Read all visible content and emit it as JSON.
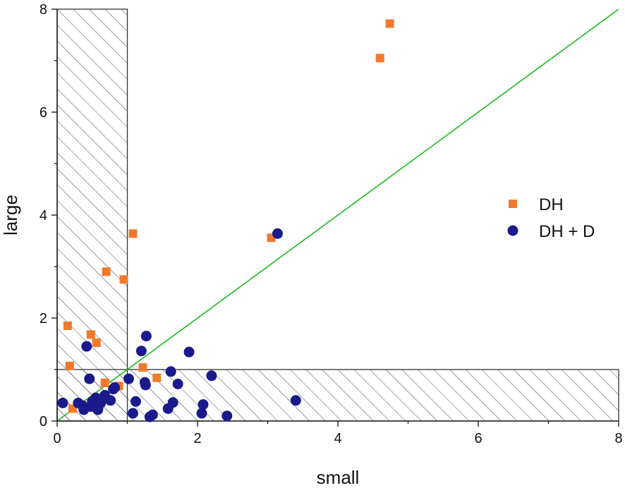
{
  "chart_data": {
    "type": "scatter",
    "title": "",
    "xlabel": "small",
    "ylabel": "large",
    "xlim": [
      0,
      8
    ],
    "ylim": [
      0,
      8
    ],
    "x_ticks": [
      "0",
      "2",
      "4",
      "6",
      "8"
    ],
    "y_ticks": [
      "0",
      "2",
      "4",
      "6",
      "8"
    ],
    "grid": false,
    "legend_position": "right",
    "reference_line": {
      "x": [
        0,
        8
      ],
      "y": [
        0,
        8
      ],
      "color": "#1fb81f"
    },
    "hatched_regions": [
      {
        "x": [
          0,
          1
        ],
        "y": [
          0,
          8
        ]
      },
      {
        "x": [
          0,
          8
        ],
        "y": [
          0,
          1
        ]
      }
    ],
    "series": [
      {
        "name": "DH",
        "marker": "square",
        "color": "#f07a2c",
        "points": [
          [
            0.15,
            1.85
          ],
          [
            0.18,
            1.07
          ],
          [
            0.22,
            0.24
          ],
          [
            0.48,
            1.68
          ],
          [
            0.56,
            1.52
          ],
          [
            0.6,
            0.3
          ],
          [
            0.68,
            0.74
          ],
          [
            0.7,
            2.9
          ],
          [
            0.88,
            0.68
          ],
          [
            0.95,
            2.75
          ],
          [
            1.08,
            3.64
          ],
          [
            1.22,
            1.04
          ],
          [
            1.42,
            0.84
          ],
          [
            3.05,
            3.56
          ],
          [
            4.6,
            7.05
          ],
          [
            4.74,
            7.72
          ]
        ]
      },
      {
        "name": "DH + D",
        "marker": "circle",
        "color": "#1a1a8c",
        "points": [
          [
            0.08,
            0.35
          ],
          [
            0.3,
            0.35
          ],
          [
            0.36,
            0.3
          ],
          [
            0.38,
            0.22
          ],
          [
            0.42,
            1.45
          ],
          [
            0.46,
            0.82
          ],
          [
            0.48,
            0.28
          ],
          [
            0.5,
            0.38
          ],
          [
            0.55,
            0.45
          ],
          [
            0.58,
            0.22
          ],
          [
            0.62,
            0.35
          ],
          [
            0.68,
            0.5
          ],
          [
            0.76,
            0.4
          ],
          [
            0.8,
            0.62
          ],
          [
            0.82,
            0.65
          ],
          [
            1.02,
            0.82
          ],
          [
            1.08,
            0.15
          ],
          [
            1.12,
            0.38
          ],
          [
            1.2,
            1.36
          ],
          [
            1.25,
            0.75
          ],
          [
            1.26,
            0.7
          ],
          [
            1.27,
            1.65
          ],
          [
            1.32,
            0.08
          ],
          [
            1.36,
            0.12
          ],
          [
            1.58,
            0.24
          ],
          [
            1.62,
            0.96
          ],
          [
            1.65,
            0.36
          ],
          [
            1.72,
            0.72
          ],
          [
            1.88,
            1.34
          ],
          [
            2.06,
            0.15
          ],
          [
            2.08,
            0.32
          ],
          [
            2.2,
            0.88
          ],
          [
            2.42,
            0.1
          ],
          [
            3.14,
            3.64
          ],
          [
            3.4,
            0.4
          ]
        ]
      }
    ]
  }
}
